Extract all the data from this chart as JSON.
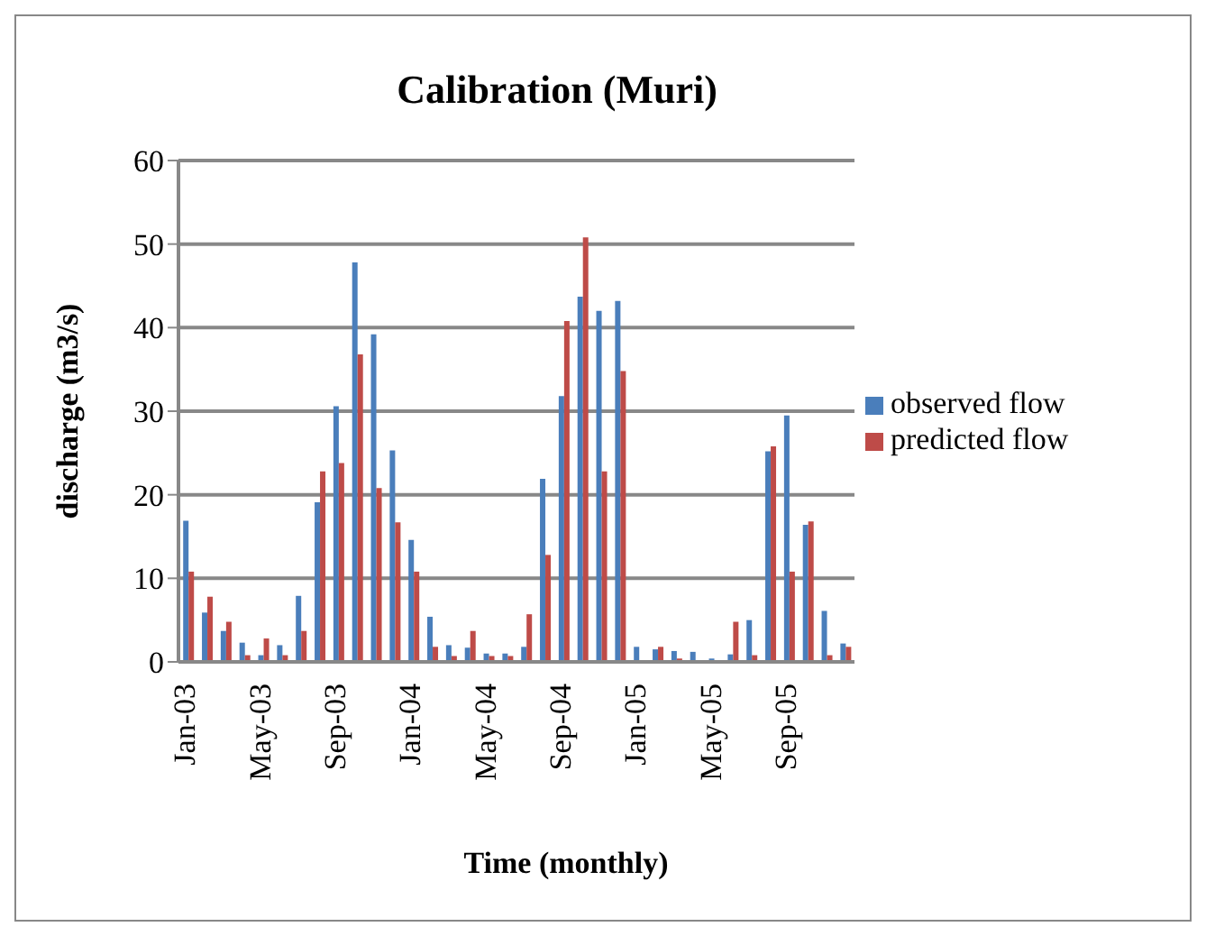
{
  "chart_data": {
    "type": "bar",
    "title": "Calibration (Muri)",
    "xlabel": "Time (monthly)",
    "ylabel": "discharge (m3/s)",
    "categories": [
      "Jan-03",
      null,
      null,
      null,
      "May-03",
      null,
      null,
      null,
      "Sep-03",
      null,
      null,
      null,
      "Jan-04",
      null,
      null,
      null,
      "May-04",
      null,
      null,
      null,
      "Sep-04",
      null,
      null,
      null,
      "Jan-05",
      null,
      null,
      null,
      "May-05",
      null,
      null,
      null,
      "Sep-05",
      null,
      null,
      null
    ],
    "series": [
      {
        "name": "observed flow",
        "color": "#4a7ebb",
        "values": [
          16.9,
          5.9,
          3.7,
          2.3,
          0.8,
          2.0,
          7.9,
          19.1,
          30.6,
          47.8,
          39.2,
          25.3,
          14.6,
          5.4,
          2.0,
          1.7,
          1.0,
          1.0,
          1.8,
          21.9,
          31.8,
          43.7,
          42.0,
          43.2,
          1.8,
          1.5,
          1.3,
          1.2,
          0.4,
          0.9,
          5.0,
          25.2,
          29.5,
          16.4,
          6.1,
          2.2
        ]
      },
      {
        "name": "predicted flow",
        "color": "#be4b48",
        "values": [
          10.8,
          7.8,
          4.8,
          0.8,
          2.8,
          0.8,
          3.7,
          22.8,
          23.8,
          36.8,
          20.8,
          16.7,
          10.8,
          1.8,
          0.7,
          3.7,
          0.7,
          0.7,
          5.7,
          12.8,
          40.8,
          50.8,
          22.8,
          34.8,
          0.1,
          1.8,
          0.4,
          0.1,
          0,
          4.8,
          0.8,
          25.8,
          10.8,
          16.8,
          0.8,
          1.8
        ]
      }
    ],
    "ylim": [
      0,
      60
    ],
    "yticks": [
      0,
      10,
      20,
      30,
      40,
      50,
      60
    ],
    "grid": "y",
    "legend": "right"
  }
}
